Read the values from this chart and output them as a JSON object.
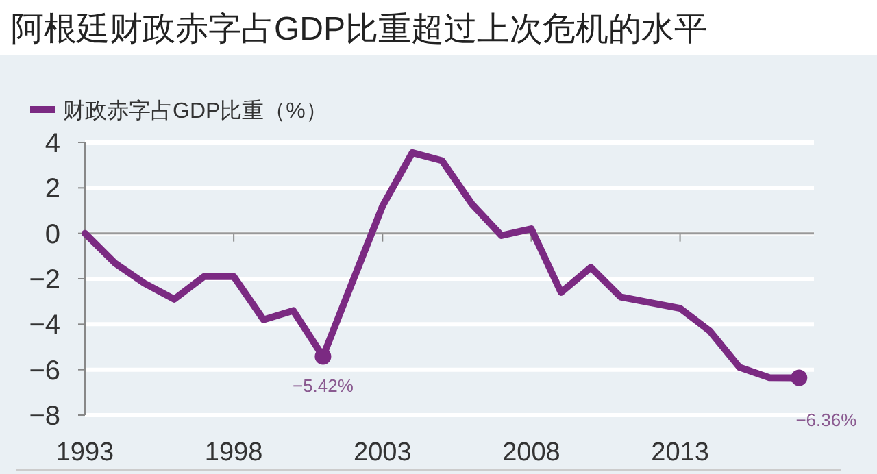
{
  "chart_data": {
    "type": "line",
    "title": "阿根廷财政赤字占GDP比重超过上次危机的水平",
    "x": [
      1993,
      1994,
      1995,
      1996,
      1997,
      1998,
      1999,
      2000,
      2001,
      2002,
      2003,
      2004,
      2005,
      2006,
      2007,
      2008,
      2009,
      2010,
      2011,
      2012,
      2013,
      2014,
      2015,
      2016,
      2017
    ],
    "series": [
      {
        "name": "财政赤字占GDP比重（%）",
        "color": "#7b2a82",
        "values": [
          0,
          -1.3,
          -2.2,
          -2.9,
          -1.9,
          -1.9,
          -3.8,
          -3.4,
          -5.42,
          -2.1,
          1.2,
          3.55,
          3.2,
          1.3,
          -0.1,
          0.2,
          -2.6,
          -1.5,
          -2.8,
          -3.05,
          -3.3,
          -4.3,
          -5.9,
          -6.35,
          -6.36
        ]
      }
    ],
    "xlim": [
      1993,
      2017.5
    ],
    "xticks": [
      1993,
      1998,
      2003,
      2008,
      2013
    ],
    "ylim": [
      -8,
      4
    ],
    "yticks": [
      -8,
      -6,
      -4,
      -2,
      0,
      2,
      4
    ],
    "grid": "y",
    "legend": "top left",
    "annotations": [
      {
        "text": "−5.42%",
        "x": 2001,
        "y": -5.42
      },
      {
        "text": "−6.36%",
        "x": 2017,
        "y": -6.36
      }
    ]
  }
}
